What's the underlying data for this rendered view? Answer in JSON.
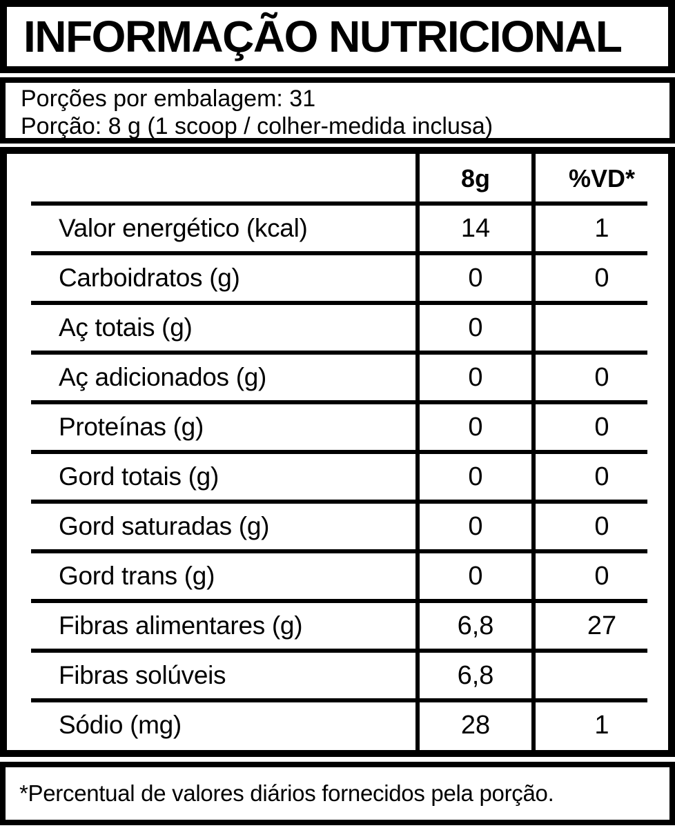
{
  "title": "INFORMAÇÃO NUTRICIONAL",
  "serving": {
    "servings_per_package": "Porções por embalagem: 31",
    "serving_size": "Porção: 8 g (1 scoop / colher-medida inclusa)"
  },
  "table": {
    "columns": {
      "amount": "8g",
      "dv": "%VD*"
    },
    "rows": [
      {
        "label": "Valor energético (kcal)",
        "amount": "14",
        "dv": "1"
      },
      {
        "label": "Carboidratos (g)",
        "amount": "0",
        "dv": "0"
      },
      {
        "label": "Aç totais (g)",
        "amount": "0",
        "dv": ""
      },
      {
        "label": "Aç adicionados (g)",
        "amount": "0",
        "dv": "0"
      },
      {
        "label": "Proteínas (g)",
        "amount": "0",
        "dv": "0"
      },
      {
        "label": "Gord totais (g)",
        "amount": "0",
        "dv": "0"
      },
      {
        "label": "Gord saturadas (g)",
        "amount": "0",
        "dv": "0"
      },
      {
        "label": "Gord trans (g)",
        "amount": "0",
        "dv": "0"
      },
      {
        "label": "Fibras alimentares (g)",
        "amount": "6,8",
        "dv": "27"
      },
      {
        "label": "Fibras solúveis",
        "amount": "6,8",
        "dv": ""
      },
      {
        "label": "Sódio (mg)",
        "amount": "28",
        "dv": "1"
      }
    ]
  },
  "footnote": "*Percentual de valores diários fornecidos pela porção.",
  "colors": {
    "ink": "#000000",
    "paper": "#ffffff"
  }
}
